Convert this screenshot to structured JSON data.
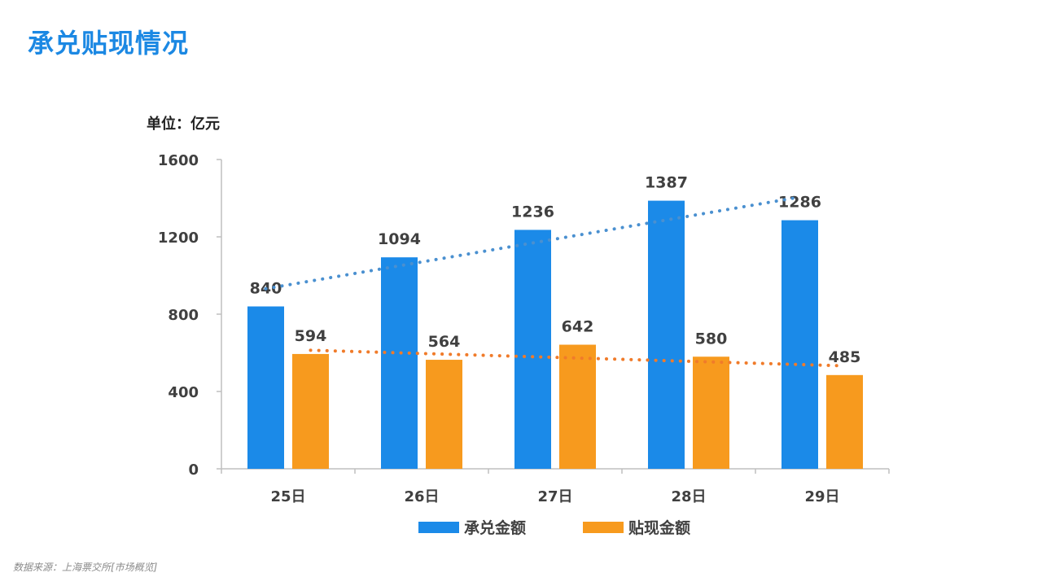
{
  "title": "承兑贴现情况",
  "unit": "单位：亿元",
  "source": "数据来源：上海票交所[市场概览]",
  "chart_data": {
    "type": "bar",
    "categories": [
      "25日",
      "26日",
      "27日",
      "28日",
      "29日"
    ],
    "series": [
      {
        "name": "承兑金额",
        "values": [
          840,
          1094,
          1236,
          1387,
          1286
        ],
        "color": "#1b8ae8",
        "trend_color": "#4a90d0"
      },
      {
        "name": "贴现金额",
        "values": [
          594,
          564,
          642,
          580,
          485
        ],
        "color": "#f79a1e",
        "trend_color": "#f07b2a"
      }
    ],
    "ylim": [
      0,
      1600
    ],
    "yticks": [
      0,
      400,
      800,
      1200,
      1600
    ],
    "trendlines": "linear, dotted",
    "grid": false,
    "legend": "bottom"
  }
}
